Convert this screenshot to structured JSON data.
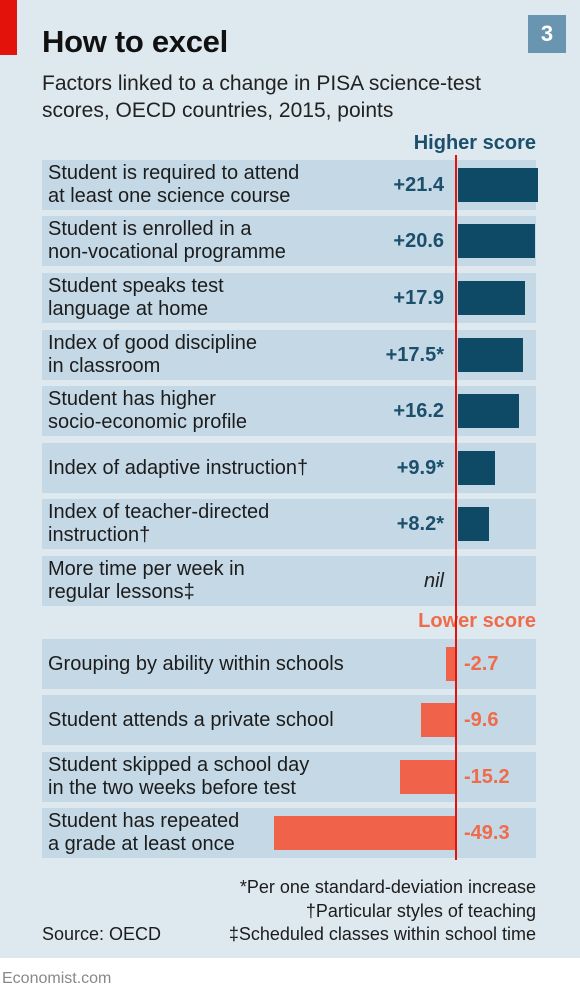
{
  "header": {
    "title": "How to excel",
    "chart_number": "3",
    "subtitle": "Factors linked to a change in PISA science-test scores, OECD countries, 2015, points"
  },
  "sections": {
    "higher": "Higher score",
    "lower": "Lower score"
  },
  "chart_data": {
    "type": "bar",
    "orientation": "horizontal",
    "title": "How to excel",
    "subtitle": "Factors linked to a change in PISA science-test scores, OECD countries, 2015, points",
    "unit": "points",
    "categories": [
      "Student is required to attend\nat least one science course",
      "Student is enrolled in a\nnon-vocational programme",
      "Student speaks test\nlanguage at home",
      "Index of good discipline\nin classroom",
      "Student has higher\nsocio-economic profile",
      "Index of adaptive instruction†",
      "Index of teacher-directed\ninstruction†",
      "More time per week in\nregular lessons‡",
      "Grouping by ability within schools",
      "Student attends a private school",
      "Student skipped a school day\nin the two weeks before test",
      "Student has repeated\na grade at least once"
    ],
    "values": [
      21.4,
      20.6,
      17.9,
      17.5,
      16.2,
      9.9,
      8.2,
      0,
      -2.7,
      -9.6,
      -15.2,
      -49.3
    ],
    "value_labels": [
      "+21.4",
      "+20.6",
      "+17.9",
      "+17.5*",
      "+16.2",
      "+9.9*",
      "+8.2*",
      "nil",
      "-2.7",
      "-9.6",
      "-15.2",
      "-49.3"
    ],
    "colors": {
      "positive": "#0e4a66",
      "negative": "#f0624a",
      "zero_line": "#e3120b",
      "row_bg": "#c4d8e5",
      "page_bg": "#dde8ef"
    }
  },
  "notes": [
    "*Per one standard-deviation increase",
    "†Particular styles of teaching",
    "‡Scheduled classes within school time"
  ],
  "source": "Source: OECD",
  "brand": "Economist.com"
}
